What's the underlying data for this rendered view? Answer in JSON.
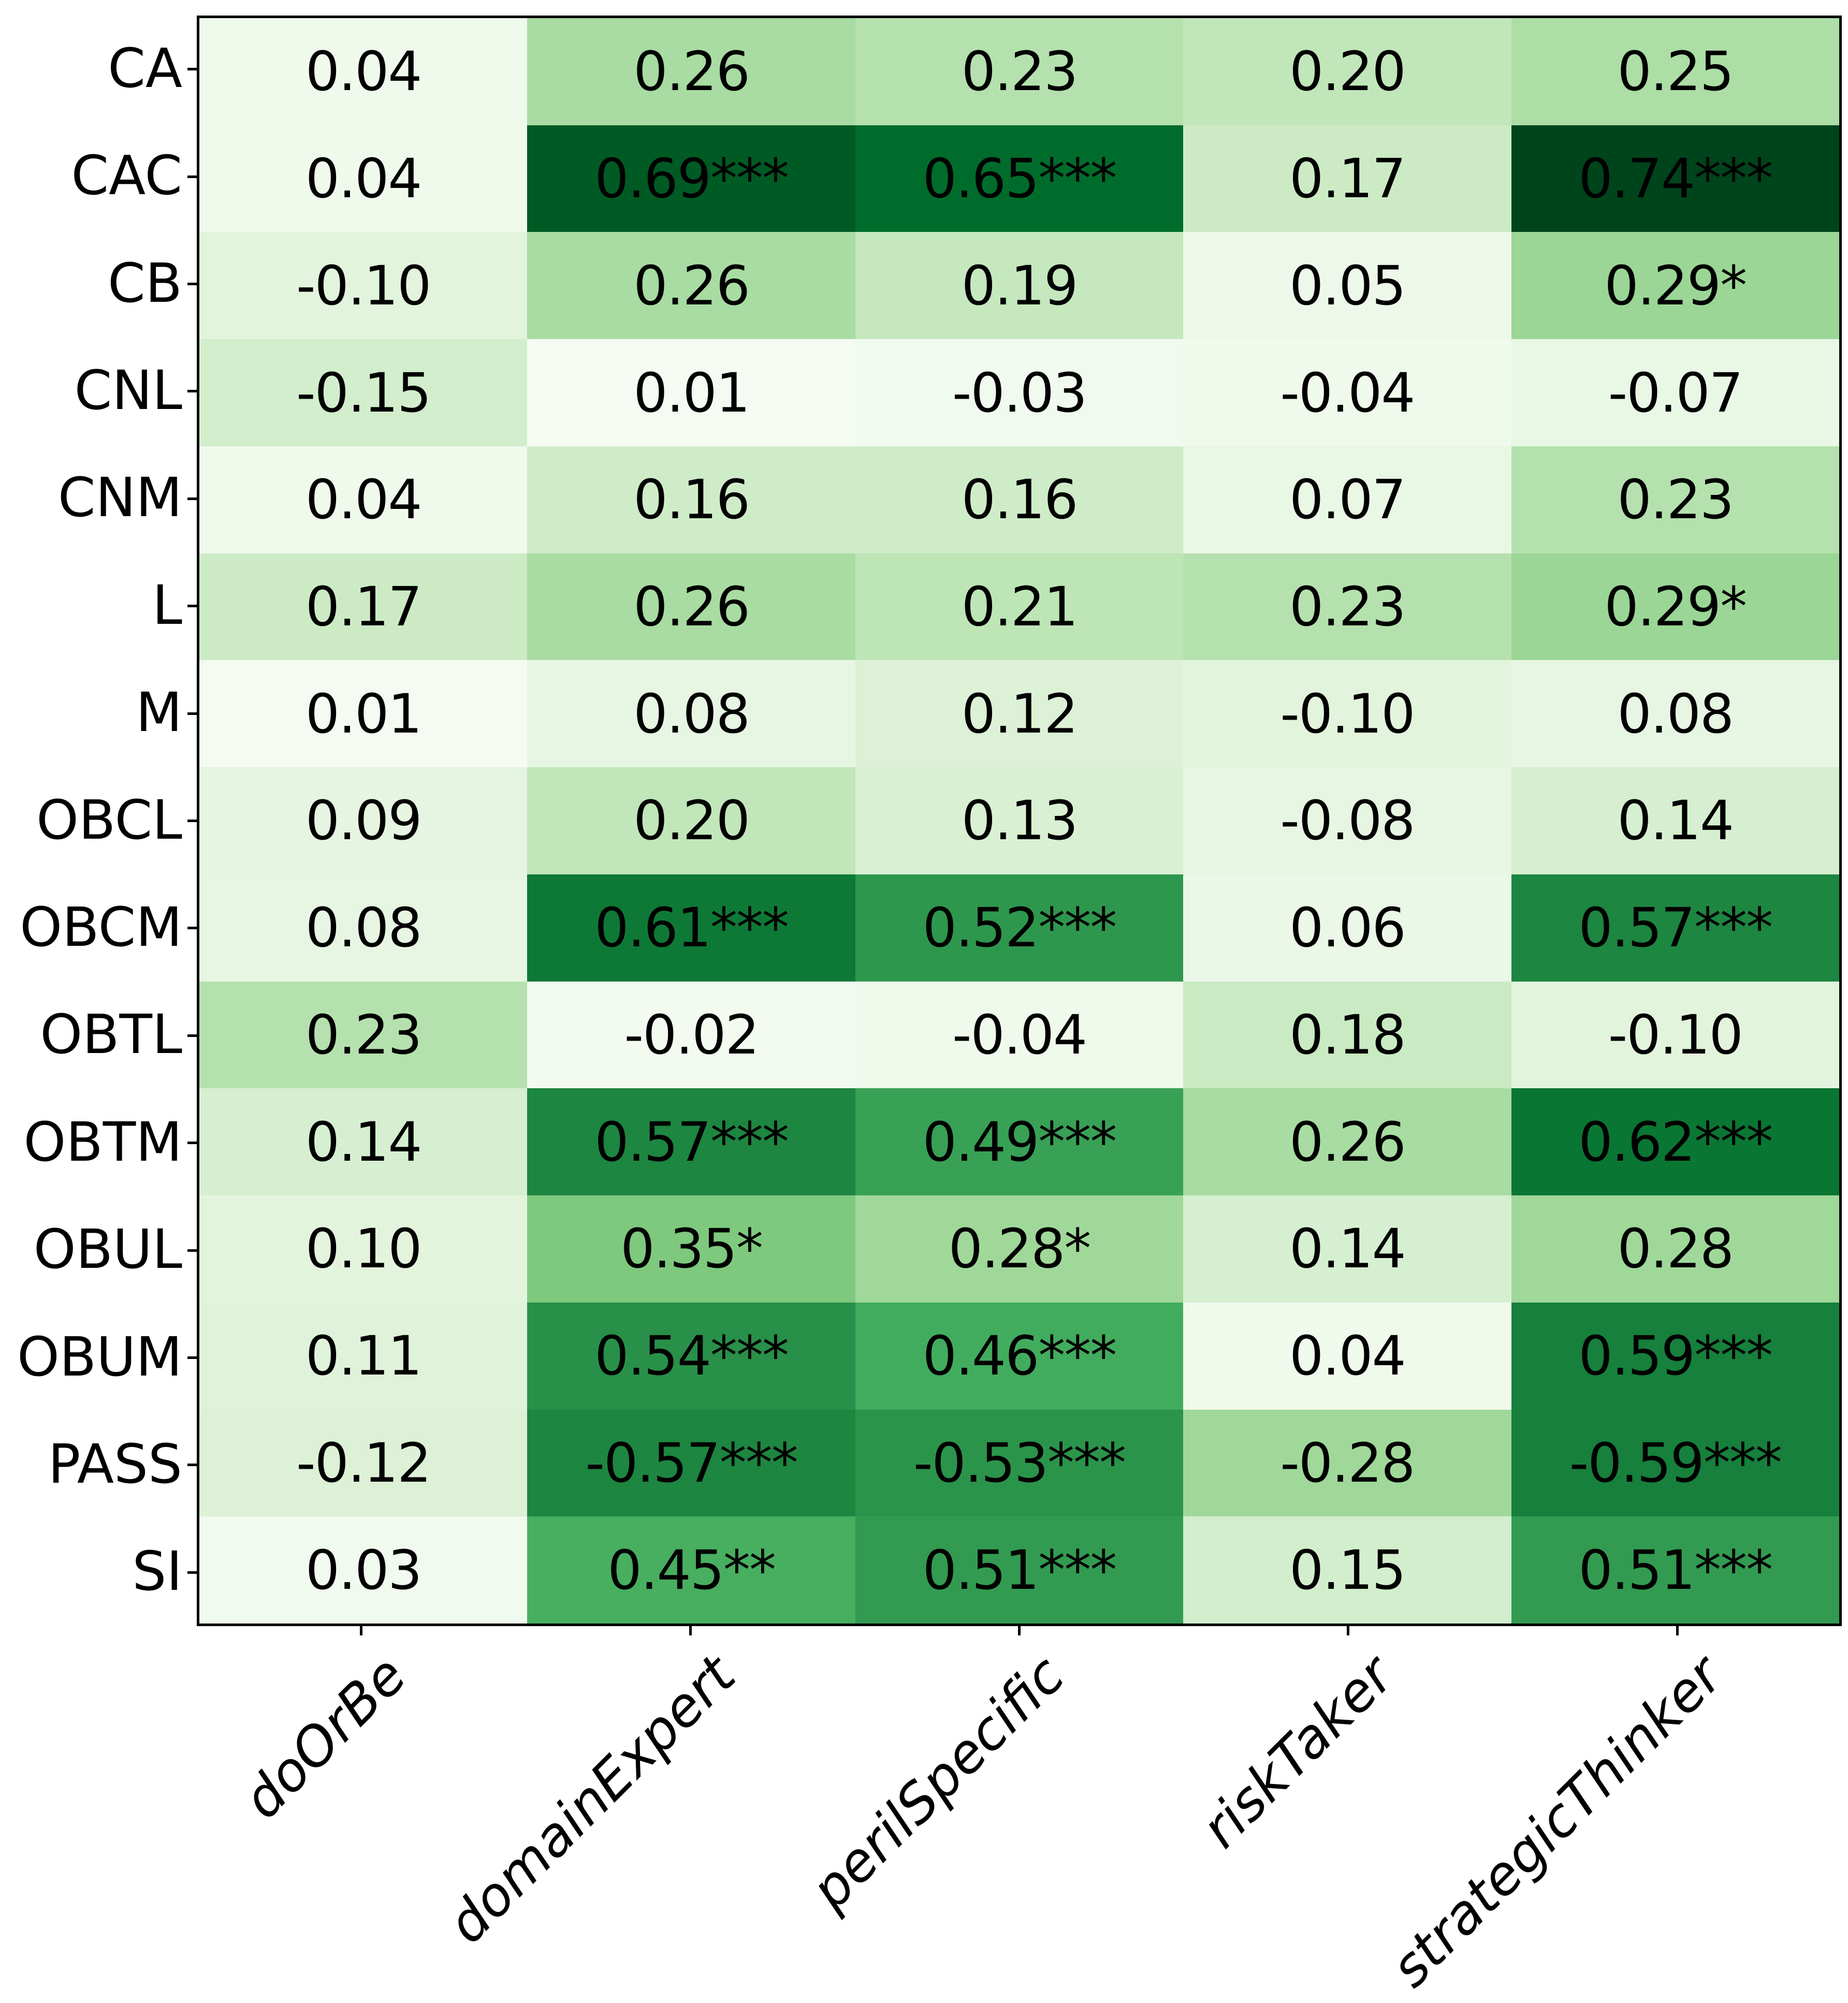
{
  "figure": {
    "background_color": "#ffffff",
    "frame_color": "#000000",
    "annotation_text_color": "#000000"
  },
  "chart_data": {
    "type": "heatmap",
    "title": "",
    "xlabel": "",
    "ylabel": "",
    "grid": false,
    "legend": "none",
    "columns": [
      "doOrBe",
      "domainExpert",
      "perilSpecific",
      "riskTaker",
      "strategicThinker"
    ],
    "rows": [
      "CA",
      "CAC",
      "CB",
      "CNL",
      "CNM",
      "L",
      "M",
      "OBCL",
      "OBCM",
      "OBTL",
      "OBTM",
      "OBUL",
      "OBUM",
      "PASS",
      "SI"
    ],
    "cell_labels": [
      [
        "0.04",
        "0.26",
        "0.23",
        "0.20",
        "0.25"
      ],
      [
        "0.04",
        "0.69***",
        "0.65***",
        "0.17",
        "0.74***"
      ],
      [
        "-0.10",
        "0.26",
        "0.19",
        "0.05",
        "0.29*"
      ],
      [
        "-0.15",
        "0.01",
        "-0.03",
        "-0.04",
        "-0.07"
      ],
      [
        "0.04",
        "0.16",
        "0.16",
        "0.07",
        "0.23"
      ],
      [
        "0.17",
        "0.26",
        "0.21",
        "0.23",
        "0.29*"
      ],
      [
        "0.01",
        "0.08",
        "0.12",
        "-0.10",
        "0.08"
      ],
      [
        "0.09",
        "0.20",
        "0.13",
        "-0.08",
        "0.14"
      ],
      [
        "0.08",
        "0.61***",
        "0.52***",
        "0.06",
        "0.57***"
      ],
      [
        "0.23",
        "-0.02",
        "-0.04",
        "0.18",
        "-0.10"
      ],
      [
        "0.14",
        "0.57***",
        "0.49***",
        "0.26",
        "0.62***"
      ],
      [
        "0.10",
        "0.35*",
        "0.28*",
        "0.14",
        "0.28"
      ],
      [
        "0.11",
        "0.54***",
        "0.46***",
        "0.04",
        "0.59***"
      ],
      [
        "-0.12",
        "-0.57***",
        "-0.53***",
        "-0.28",
        "-0.59***"
      ],
      [
        "0.03",
        "0.45**",
        "0.51***",
        "0.15",
        "0.51***"
      ]
    ],
    "values": [
      [
        0.04,
        0.26,
        0.23,
        0.2,
        0.25
      ],
      [
        0.04,
        0.69,
        0.65,
        0.17,
        0.74
      ],
      [
        -0.1,
        0.26,
        0.19,
        0.05,
        0.29
      ],
      [
        -0.15,
        0.01,
        -0.03,
        -0.04,
        -0.07
      ],
      [
        0.04,
        0.16,
        0.16,
        0.07,
        0.23
      ],
      [
        0.17,
        0.26,
        0.21,
        0.23,
        0.29
      ],
      [
        0.01,
        0.08,
        0.12,
        -0.1,
        0.08
      ],
      [
        0.09,
        0.2,
        0.13,
        -0.08,
        0.14
      ],
      [
        0.08,
        0.61,
        0.52,
        0.06,
        0.57
      ],
      [
        0.23,
        -0.02,
        -0.04,
        0.18,
        -0.1
      ],
      [
        0.14,
        0.57,
        0.49,
        0.26,
        0.62
      ],
      [
        0.1,
        0.35,
        0.28,
        0.14,
        0.28
      ],
      [
        0.11,
        0.54,
        0.46,
        0.04,
        0.59
      ],
      [
        -0.12,
        -0.57,
        -0.53,
        -0.28,
        -0.59
      ],
      [
        0.03,
        0.45,
        0.51,
        0.15,
        0.51
      ]
    ],
    "colormap": {
      "name": "Greens",
      "applied_to": "absolute value",
      "vmin": 0,
      "vmax": 0.74,
      "stops": [
        "#f7fcf5",
        "#e5f5e0",
        "#c7e9c0",
        "#a1d99b",
        "#74c476",
        "#41ab5d",
        "#238b45",
        "#006d2c",
        "#00441b"
      ]
    }
  }
}
